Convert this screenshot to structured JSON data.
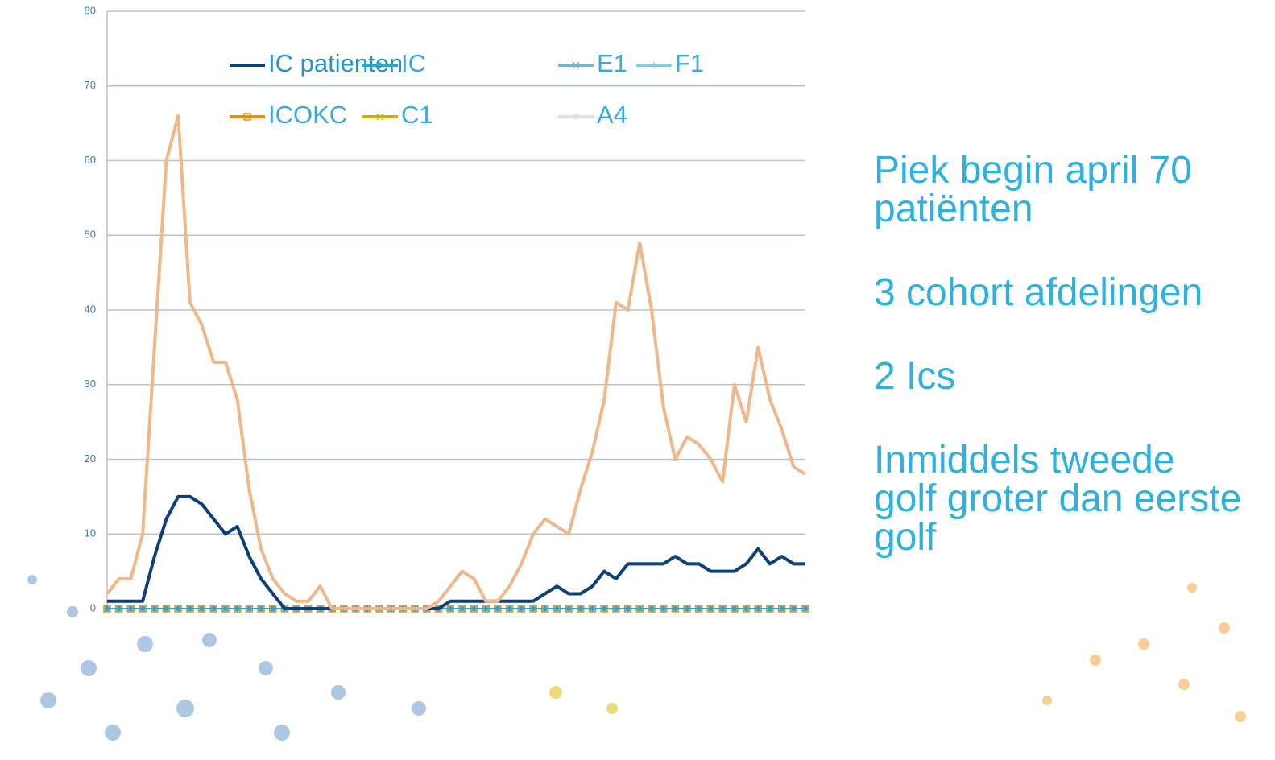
{
  "chart_data": {
    "type": "line",
    "ylim": [
      0,
      80
    ],
    "yticks": [
      0,
      10,
      20,
      30,
      40,
      50,
      60,
      70,
      80
    ],
    "grid": true,
    "series": [
      {
        "color": "#f0b88a",
        "values": [
          2,
          4,
          4,
          10,
          35,
          60,
          66,
          41,
          38,
          33,
          33,
          28,
          16,
          8,
          4,
          2,
          1,
          1,
          3,
          0,
          0,
          0,
          0,
          0,
          0,
          0,
          0,
          0,
          1,
          3,
          5,
          4,
          1,
          1,
          3,
          6,
          10,
          12,
          11,
          10,
          16,
          21,
          28,
          41,
          40,
          49,
          40,
          27,
          20,
          23,
          22,
          20,
          17,
          30,
          25,
          35,
          28,
          24,
          19,
          18
        ]
      },
      {
        "name": "IC patienten",
        "color": "#0d3f7a",
        "values": [
          1,
          1,
          1,
          1,
          7,
          12,
          15,
          15,
          14,
          12,
          10,
          11,
          7,
          4,
          2,
          0,
          0,
          0,
          0,
          0,
          0,
          0,
          0,
          0,
          0,
          0,
          0,
          0,
          0,
          1,
          1,
          1,
          1,
          1,
          1,
          1,
          1,
          2,
          3,
          2,
          2,
          3,
          5,
          4,
          6,
          6,
          6,
          6,
          7,
          6,
          6,
          5,
          5,
          5,
          6,
          8,
          6,
          7,
          6,
          6
        ]
      },
      {
        "name": "IC",
        "color": "#2aa5c8",
        "marker": "diamond",
        "values": [
          0,
          0,
          0,
          0,
          0,
          0,
          0,
          0,
          0,
          0,
          0,
          0,
          0,
          0,
          0,
          0,
          0,
          0,
          0,
          0,
          0,
          0,
          0,
          0,
          0,
          0,
          0,
          0,
          0,
          0,
          0,
          0,
          0,
          0,
          0,
          0,
          0,
          0,
          0,
          0,
          0,
          0,
          0,
          0,
          0,
          0,
          0,
          0,
          0,
          0,
          0,
          0,
          0,
          0,
          0,
          0,
          0,
          0,
          0,
          0
        ]
      },
      {
        "name": "E1",
        "color": "#7ab0d0",
        "marker": "x",
        "values": [
          0,
          0,
          0,
          0,
          0,
          0,
          0,
          0,
          0,
          0,
          0,
          0,
          0,
          0,
          0,
          0,
          0,
          0,
          0,
          0,
          0,
          0,
          0,
          0,
          0,
          0,
          0,
          0,
          0,
          0,
          0,
          0,
          0,
          0,
          0,
          0,
          0,
          0,
          0,
          0,
          0,
          0,
          0,
          0,
          0,
          0,
          0,
          0,
          0,
          0,
          0,
          0,
          0,
          0,
          0,
          0,
          0,
          0,
          0,
          0
        ]
      },
      {
        "name": "F1",
        "color": "#8ccbe8",
        "marker": "plus",
        "values": [
          0,
          0,
          0,
          0,
          0,
          0,
          0,
          0,
          0,
          0,
          0,
          0,
          0,
          0,
          0,
          0,
          0,
          0,
          0,
          0,
          0,
          0,
          0,
          0,
          0,
          0,
          0,
          0,
          0,
          0,
          0,
          0,
          0,
          0,
          0,
          0,
          0,
          0,
          0,
          0,
          0,
          0,
          0,
          0,
          0,
          0,
          0,
          0,
          0,
          0,
          0,
          0,
          0,
          0,
          0,
          0,
          0,
          0,
          0,
          0
        ]
      },
      {
        "name": "ICOKC",
        "color": "#e0900a",
        "marker": "square",
        "values": [
          0,
          0,
          0,
          0,
          0,
          0,
          0,
          0,
          0,
          0,
          0,
          0,
          0,
          0,
          0,
          0,
          0,
          0,
          0,
          0,
          0,
          0,
          0,
          0,
          0,
          0,
          0,
          0,
          0,
          0,
          0,
          0,
          0,
          0,
          0,
          0,
          0,
          0,
          0,
          0,
          0,
          0,
          0,
          0,
          0,
          0,
          0,
          0,
          0,
          0,
          0,
          0,
          0,
          0,
          0,
          0,
          0,
          0,
          0,
          0
        ]
      },
      {
        "name": "C1",
        "color": "#c8b400",
        "marker": "x",
        "values": [
          0,
          0,
          0,
          0,
          0,
          0,
          0,
          0,
          0,
          0,
          0,
          0,
          0,
          0,
          0,
          0,
          0,
          0,
          0,
          0,
          0,
          0,
          0,
          0,
          0,
          0,
          0,
          0,
          0,
          0,
          0,
          0,
          0,
          0,
          0,
          0,
          0,
          0,
          0,
          0,
          0,
          0,
          0,
          0,
          0,
          0,
          0,
          0,
          0,
          0,
          0,
          0,
          0,
          0,
          0,
          0,
          0,
          0,
          0,
          0
        ]
      },
      {
        "name": "A4",
        "color": "#e0e0e0",
        "marker": "circle",
        "values": [
          0,
          0,
          0,
          0,
          0,
          0,
          0,
          0,
          0,
          0,
          0,
          0,
          0,
          0,
          0,
          0,
          0,
          0,
          0,
          0,
          0,
          0,
          0,
          0,
          0,
          0,
          0,
          0,
          0,
          0,
          0,
          0,
          0,
          0,
          0,
          0,
          0,
          0,
          0,
          0,
          0,
          0,
          0,
          0,
          0,
          0,
          0,
          0,
          0,
          0,
          0,
          0,
          0,
          0,
          0,
          0,
          0,
          0,
          0,
          0
        ]
      }
    ],
    "annotations": [
      "Piek begin april 70 patiënten",
      "3 cohort afdelingen",
      "2 Ics",
      "Inmiddels tweede golf groter dan eerste golf"
    ]
  }
}
